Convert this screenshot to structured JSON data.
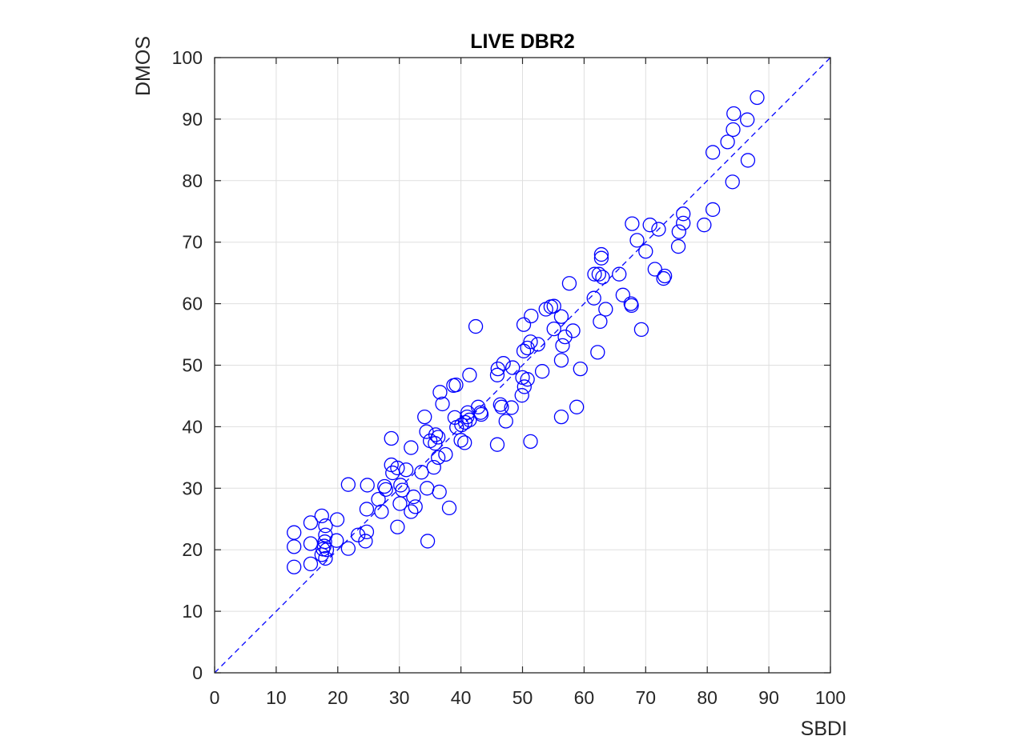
{
  "chart_data": {
    "type": "scatter",
    "title": "LIVE DBR2",
    "xlabel": "SBDI",
    "ylabel": "DMOS",
    "xlim": [
      0,
      100
    ],
    "ylim": [
      0,
      100
    ],
    "xticks": [
      0,
      10,
      20,
      30,
      40,
      50,
      60,
      70,
      80,
      90,
      100
    ],
    "yticks": [
      0,
      10,
      20,
      30,
      40,
      50,
      60,
      70,
      80,
      90,
      100
    ],
    "grid": true,
    "marker": "open-circle",
    "colors": {
      "marker": "#0000ff",
      "reference_line": "#0000ff",
      "grid": "#dfdfdf",
      "axes": "#262626"
    },
    "reference_line": {
      "style": "dashed",
      "from": [
        0,
        0
      ],
      "to": [
        100,
        100
      ]
    },
    "points": [
      [
        12.9,
        17.2
      ],
      [
        12.9,
        20.5
      ],
      [
        12.9,
        22.8
      ],
      [
        15.6,
        17.7
      ],
      [
        15.6,
        21.0
      ],
      [
        15.6,
        24.4
      ],
      [
        17.4,
        25.5
      ],
      [
        17.4,
        19.2
      ],
      [
        17.6,
        20.1
      ],
      [
        17.8,
        20.6
      ],
      [
        17.9,
        21.3
      ],
      [
        18.0,
        22.4
      ],
      [
        18.0,
        23.9
      ],
      [
        18.0,
        18.6
      ],
      [
        18.2,
        20.0
      ],
      [
        19.8,
        21.5
      ],
      [
        19.9,
        24.9
      ],
      [
        21.7,
        20.2
      ],
      [
        21.7,
        30.6
      ],
      [
        23.3,
        22.4
      ],
      [
        24.5,
        21.4
      ],
      [
        24.7,
        22.9
      ],
      [
        24.7,
        26.6
      ],
      [
        24.8,
        30.5
      ],
      [
        26.6,
        28.2
      ],
      [
        27.1,
        26.2
      ],
      [
        27.6,
        30.3
      ],
      [
        27.8,
        29.8
      ],
      [
        28.7,
        33.8
      ],
      [
        28.7,
        38.1
      ],
      [
        28.9,
        32.5
      ],
      [
        29.7,
        23.7
      ],
      [
        29.7,
        33.3
      ],
      [
        30.1,
        27.5
      ],
      [
        30.2,
        30.5
      ],
      [
        30.5,
        29.7
      ],
      [
        31.1,
        33.0
      ],
      [
        31.9,
        26.2
      ],
      [
        31.9,
        36.6
      ],
      [
        32.3,
        28.6
      ],
      [
        32.6,
        27.0
      ],
      [
        33.6,
        32.6
      ],
      [
        34.1,
        41.6
      ],
      [
        34.4,
        39.2
      ],
      [
        34.5,
        30.0
      ],
      [
        34.6,
        21.4
      ],
      [
        35.0,
        37.7
      ],
      [
        35.6,
        33.4
      ],
      [
        35.8,
        37.3
      ],
      [
        35.9,
        38.7
      ],
      [
        36.3,
        38.3
      ],
      [
        36.3,
        35.0
      ],
      [
        36.5,
        29.4
      ],
      [
        36.6,
        45.6
      ],
      [
        37.0,
        43.7
      ],
      [
        37.5,
        35.5
      ],
      [
        38.1,
        26.8
      ],
      [
        38.8,
        46.7
      ],
      [
        39.0,
        41.5
      ],
      [
        39.2,
        46.8
      ],
      [
        39.3,
        39.9
      ],
      [
        40.0,
        37.8
      ],
      [
        40.1,
        40.3
      ],
      [
        40.6,
        37.4
      ],
      [
        40.7,
        40.7
      ],
      [
        41.0,
        41.6
      ],
      [
        41.1,
        42.3
      ],
      [
        41.4,
        48.4
      ],
      [
        41.4,
        41.1
      ],
      [
        42.4,
        56.3
      ],
      [
        42.8,
        43.2
      ],
      [
        43.2,
        42.3
      ],
      [
        43.3,
        42.0
      ],
      [
        45.9,
        37.1
      ],
      [
        45.9,
        48.4
      ],
      [
        46.0,
        49.4
      ],
      [
        46.4,
        43.6
      ],
      [
        46.6,
        43.2
      ],
      [
        46.9,
        50.3
      ],
      [
        47.3,
        40.9
      ],
      [
        48.2,
        43.1
      ],
      [
        48.4,
        49.6
      ],
      [
        49.9,
        45.1
      ],
      [
        50.0,
        48.0
      ],
      [
        50.2,
        52.3
      ],
      [
        50.2,
        56.6
      ],
      [
        50.3,
        46.5
      ],
      [
        50.8,
        47.7
      ],
      [
        50.8,
        52.8
      ],
      [
        51.3,
        53.8
      ],
      [
        51.3,
        37.6
      ],
      [
        51.4,
        58.0
      ],
      [
        52.5,
        53.4
      ],
      [
        53.2,
        49.0
      ],
      [
        53.8,
        59.1
      ],
      [
        54.6,
        59.5
      ],
      [
        55.1,
        59.6
      ],
      [
        55.1,
        55.9
      ],
      [
        56.3,
        57.9
      ],
      [
        56.3,
        50.8
      ],
      [
        56.3,
        41.6
      ],
      [
        56.5,
        53.2
      ],
      [
        56.9,
        54.6
      ],
      [
        57.6,
        63.3
      ],
      [
        58.2,
        55.6
      ],
      [
        58.8,
        43.2
      ],
      [
        59.4,
        49.4
      ],
      [
        61.6,
        60.9
      ],
      [
        61.7,
        64.8
      ],
      [
        62.2,
        52.1
      ],
      [
        62.4,
        64.8
      ],
      [
        62.6,
        57.1
      ],
      [
        62.8,
        67.4
      ],
      [
        62.8,
        68.0
      ],
      [
        63.0,
        64.3
      ],
      [
        63.5,
        59.1
      ],
      [
        65.7,
        64.8
      ],
      [
        66.3,
        61.4
      ],
      [
        67.6,
        60.0
      ],
      [
        67.7,
        59.7
      ],
      [
        67.8,
        73.0
      ],
      [
        68.6,
        70.3
      ],
      [
        69.3,
        55.8
      ],
      [
        70.0,
        68.5
      ],
      [
        70.7,
        72.8
      ],
      [
        71.5,
        65.6
      ],
      [
        72.1,
        72.1
      ],
      [
        72.9,
        64.1
      ],
      [
        73.1,
        64.5
      ],
      [
        75.3,
        69.3
      ],
      [
        75.4,
        71.7
      ],
      [
        76.1,
        74.6
      ],
      [
        76.1,
        73.1
      ],
      [
        79.5,
        72.8
      ],
      [
        80.9,
        75.3
      ],
      [
        80.9,
        84.6
      ],
      [
        83.3,
        86.3
      ],
      [
        84.1,
        79.8
      ],
      [
        84.2,
        88.3
      ],
      [
        84.3,
        90.9
      ],
      [
        86.5,
        89.9
      ],
      [
        86.6,
        83.3
      ],
      [
        88.1,
        93.5
      ]
    ]
  }
}
